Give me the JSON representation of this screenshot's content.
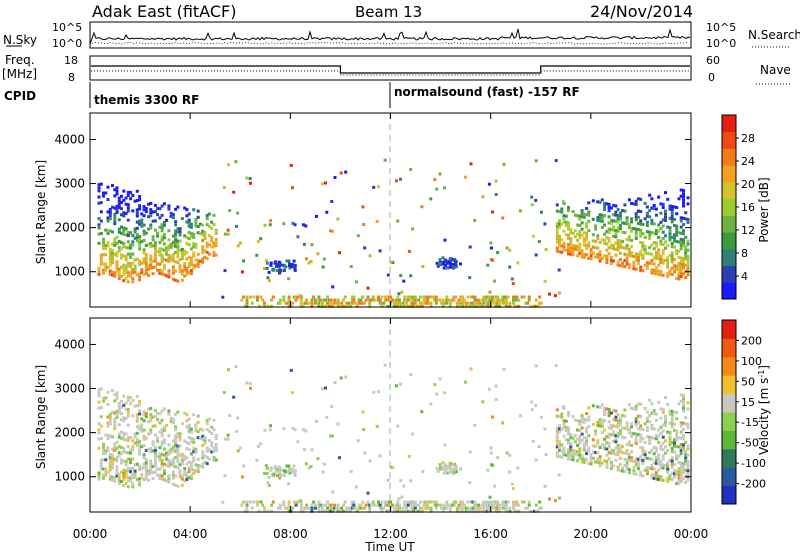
{
  "header": {
    "station": "Adak East (fitACF)",
    "beam": "Beam 13",
    "date": "24/Nov/2014"
  },
  "noise_panel": {
    "left_label": "N.Sky",
    "right_label": "N.Search",
    "y_top": "10^5",
    "y_bottom": "10^0",
    "right_top": "10^5",
    "right_bottom": "10^0"
  },
  "freq_panel": {
    "left_label_line1": "Freq.",
    "left_label_line2": "[MHz]",
    "right_label": "Nave",
    "left_top": "18",
    "left_bottom": "8",
    "right_top": "60",
    "right_bottom": "0"
  },
  "cpid_panel": {
    "label": "CPID",
    "mode1": "themis 3300 RF",
    "mode2": "normalsound (fast) -157 RF"
  },
  "x_axis": {
    "ticks": [
      "00:00",
      "04:00",
      "08:00",
      "12:00",
      "16:00",
      "20:00",
      "00:00"
    ],
    "label": "Time UT"
  },
  "chart_data": [
    {
      "type": "heatmap",
      "title": "Power",
      "xlabel": "Time UT",
      "ylabel": "Slant Range [km]",
      "x_ticks": [
        "00:00",
        "04:00",
        "08:00",
        "12:00",
        "16:00",
        "20:00",
        "00:00"
      ],
      "y_ticks": [
        1000,
        2000,
        3000,
        4000
      ],
      "ylim": [
        200,
        4600
      ],
      "colorbar_label": "Power [dB]",
      "colorbar_ticks": [
        4,
        8,
        12,
        16,
        20,
        24,
        28
      ],
      "colors": [
        "#1a1aff",
        "#2a40b0",
        "#2f7f7f",
        "#3a9a40",
        "#6ab43c",
        "#9ccc30",
        "#d6c22a",
        "#f2a020",
        "#f57a18",
        "#f04a14",
        "#e62010"
      ]
    },
    {
      "type": "heatmap",
      "title": "Velocity",
      "xlabel": "Time UT",
      "ylabel": "Slant Range [km]",
      "x_ticks": [
        "00:00",
        "04:00",
        "08:00",
        "12:00",
        "16:00",
        "20:00",
        "00:00"
      ],
      "y_ticks": [
        1000,
        2000,
        3000,
        4000
      ],
      "ylim": [
        200,
        4600
      ],
      "colorbar_label": "Velocity [m s^-1]",
      "colorbar_ticks": [
        200,
        100,
        50,
        15,
        -15,
        -50,
        -100,
        -200
      ],
      "colors": [
        "#2030c0",
        "#2a5aa0",
        "#2e7a5a",
        "#5ab83a",
        "#8cd050",
        "#c8c8c0",
        "#f0c030",
        "#f08a18",
        "#f05a10",
        "#e61e10"
      ]
    }
  ]
}
